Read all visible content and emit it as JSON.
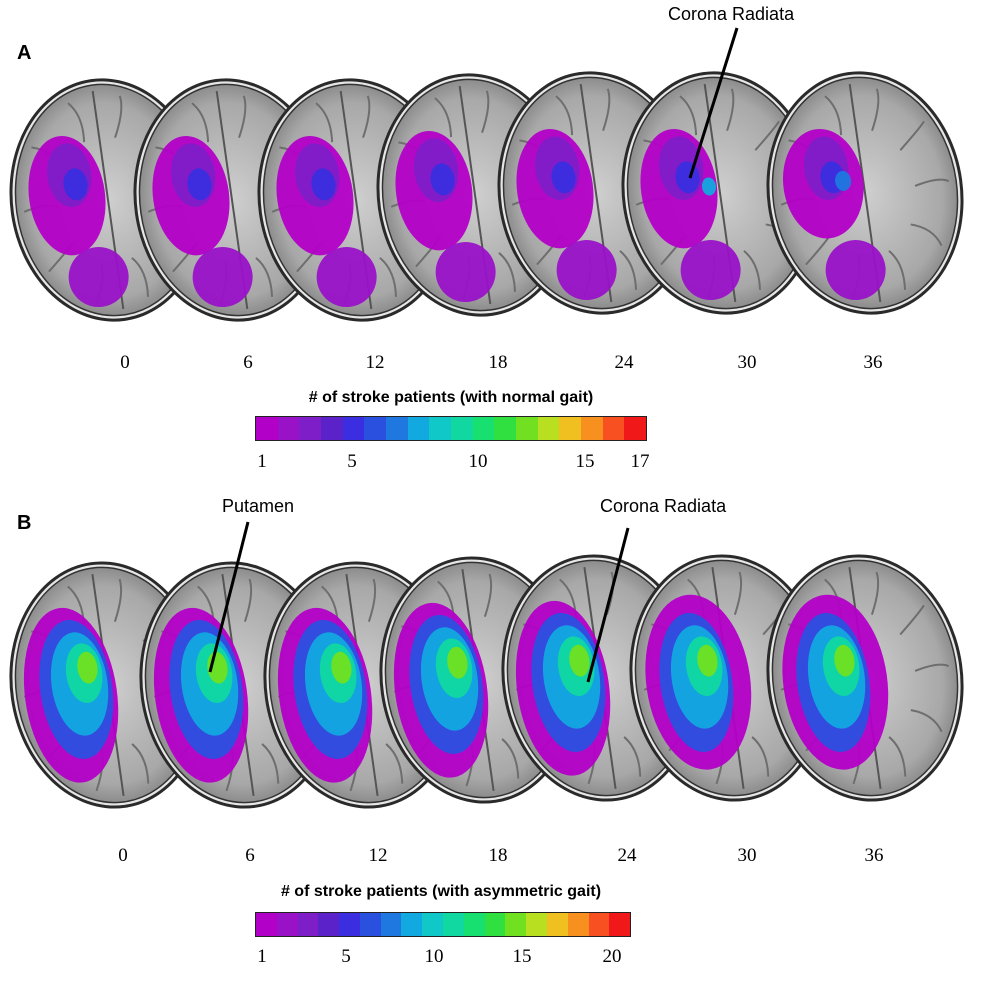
{
  "panel_a": {
    "letter": "A",
    "slice_labels": [
      "0",
      "6",
      "12",
      "18",
      "24",
      "30",
      "36"
    ],
    "annotation": "Corona Radiata",
    "colorbar_title": "# of stroke patients (with normal gait)",
    "colorbar_ticks": [
      "1",
      "5",
      "10",
      "15",
      "17"
    ],
    "colorbar_colors": [
      "#b300c8",
      "#9a12c8",
      "#7e1ec8",
      "#5a22c8",
      "#3a2ee0",
      "#2a50e0",
      "#1e78e0",
      "#12a8e0",
      "#10c8c8",
      "#10d8a0",
      "#18e070",
      "#30e040",
      "#70e020",
      "#b8e020",
      "#f0c020",
      "#f89020",
      "#f85020",
      "#f01818"
    ]
  },
  "panel_b": {
    "letter": "B",
    "slice_labels": [
      "0",
      "6",
      "12",
      "18",
      "24",
      "30",
      "36"
    ],
    "annotation_left": "Putamen",
    "annotation_right": "Corona Radiata",
    "colorbar_title": "# of stroke patients (with asymmetric gait)",
    "colorbar_ticks": [
      "1",
      "5",
      "10",
      "15",
      "20"
    ],
    "colorbar_colors": [
      "#b300c8",
      "#9a12c8",
      "#7e1ec8",
      "#5a22c8",
      "#3a2ee0",
      "#2a50e0",
      "#1e78e0",
      "#12a8e0",
      "#10c8c8",
      "#10d8a0",
      "#18e070",
      "#30e040",
      "#70e020",
      "#b8e020",
      "#f0c020",
      "#f89020",
      "#f85020",
      "#f01818"
    ]
  }
}
